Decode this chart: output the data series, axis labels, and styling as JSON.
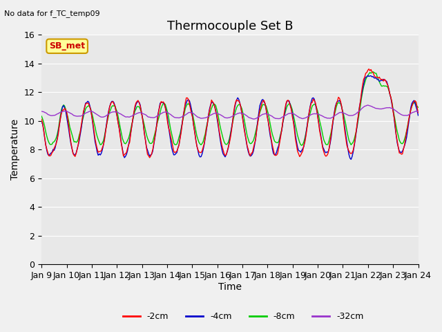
{
  "title": "Thermocouple Set B",
  "subtitle": "No data for f_TC_temp09",
  "ylabel": "Temperature",
  "xlabel": "Time",
  "ylim": [
    0,
    16
  ],
  "yticks": [
    0,
    2,
    4,
    6,
    8,
    10,
    12,
    14,
    16
  ],
  "xtick_labels": [
    "Jan 9",
    "Jan 10",
    "Jan 11",
    "Jan 12",
    "Jan 13",
    "Jan 14",
    "Jan 15",
    "Jan 16",
    "Jan 17",
    "Jan 18",
    "Jan 19",
    "Jan 20",
    "Jan 21",
    "Jan 22",
    "Jan 23",
    "Jan 24"
  ],
  "legend_labels": [
    "-2cm",
    "-4cm",
    "-8cm",
    "-32cm"
  ],
  "line_colors": [
    "#ff0000",
    "#0000cc",
    "#00cc00",
    "#9933cc"
  ],
  "background_color": "#e8e8e8",
  "fig_bg_color": "#f0f0f0",
  "legend_box_color": "#ffff99",
  "legend_box_edge": "#cc9900",
  "sb_met_color": "#cc0000",
  "title_fontsize": 13,
  "label_fontsize": 10,
  "tick_fontsize": 9
}
